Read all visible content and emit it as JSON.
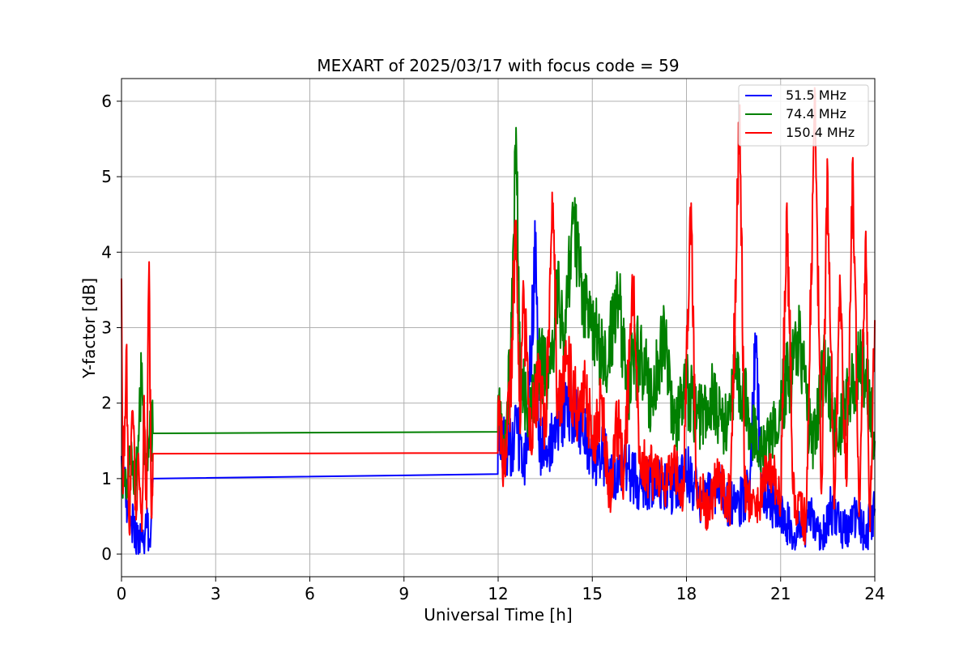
{
  "chart_data": {
    "type": "line",
    "title": "MEXART of 2025/03/17 with focus code = 59",
    "xlabel": "Universal Time [h]",
    "ylabel": "Y-factor [dB]",
    "xlim": [
      0,
      24
    ],
    "ylim": [
      -0.3,
      6.3
    ],
    "xticks": [
      0,
      3,
      6,
      9,
      12,
      15,
      18,
      21,
      24
    ],
    "xtick_labels": [
      "0",
      "3",
      "6",
      "9",
      "12",
      "15",
      "18",
      "21",
      "24"
    ],
    "yticks": [
      0,
      1,
      2,
      3,
      4,
      5,
      6
    ],
    "ytick_labels": [
      "0",
      "1",
      "2",
      "3",
      "4",
      "5",
      "6"
    ],
    "grid": true,
    "legend_position": "top-right",
    "series": [
      {
        "name": "51.5 MHz",
        "legend_label": " 51.5 MHz",
        "color": "#0000ff",
        "points": [
          [
            0.0,
            1.3
          ],
          [
            0.1,
            0.9
          ],
          [
            0.2,
            0.7
          ],
          [
            0.3,
            0.5
          ],
          [
            0.4,
            0.35
          ],
          [
            0.5,
            0.2
          ],
          [
            0.55,
            0.05
          ],
          [
            0.6,
            0.4
          ],
          [
            0.7,
            0.15
          ],
          [
            0.8,
            0.35
          ],
          [
            0.9,
            0.2
          ],
          [
            0.95,
            0.5
          ],
          [
            1.0,
            1.0
          ],
          [
            11.99,
            1.06
          ],
          [
            12.0,
            1.7
          ],
          [
            12.3,
            1.3
          ],
          [
            12.6,
            1.6
          ],
          [
            12.9,
            1.2
          ],
          [
            13.2,
            4.26
          ],
          [
            13.3,
            1.5
          ],
          [
            13.6,
            1.3
          ],
          [
            13.9,
            1.8
          ],
          [
            14.2,
            2.0
          ],
          [
            14.5,
            1.9
          ],
          [
            14.7,
            1.6
          ],
          [
            15.0,
            1.2
          ],
          [
            15.3,
            1.4
          ],
          [
            15.6,
            1.0
          ],
          [
            16.0,
            1.2
          ],
          [
            16.5,
            0.9
          ],
          [
            17.0,
            1.0
          ],
          [
            17.5,
            0.8
          ],
          [
            18.0,
            1.1
          ],
          [
            18.5,
            0.7
          ],
          [
            19.0,
            0.9
          ],
          [
            19.5,
            0.6
          ],
          [
            20.0,
            0.8
          ],
          [
            20.2,
            2.68
          ],
          [
            20.4,
            0.9
          ],
          [
            20.8,
            0.6
          ],
          [
            21.2,
            0.4
          ],
          [
            21.6,
            0.3
          ],
          [
            22.0,
            0.5
          ],
          [
            22.3,
            0.2
          ],
          [
            22.6,
            0.6
          ],
          [
            23.0,
            0.3
          ],
          [
            23.4,
            0.5
          ],
          [
            23.7,
            0.25
          ],
          [
            24.0,
            0.6
          ]
        ]
      },
      {
        "name": "74.4 MHz",
        "legend_label": " 74.4 MHz",
        "color": "#008000",
        "points": [
          [
            0.0,
            1.2
          ],
          [
            0.1,
            0.9
          ],
          [
            0.2,
            1.1
          ],
          [
            0.3,
            1.3
          ],
          [
            0.45,
            0.9
          ],
          [
            0.55,
            1.5
          ],
          [
            0.65,
            2.53
          ],
          [
            0.75,
            1.2
          ],
          [
            0.85,
            1.5
          ],
          [
            0.95,
            1.7
          ],
          [
            1.0,
            1.6
          ],
          [
            11.99,
            1.62
          ],
          [
            12.0,
            2.1
          ],
          [
            12.2,
            1.4
          ],
          [
            12.4,
            2.6
          ],
          [
            12.57,
            5.65
          ],
          [
            12.7,
            2.3
          ],
          [
            13.0,
            1.8
          ],
          [
            13.3,
            2.6
          ],
          [
            13.6,
            2.2
          ],
          [
            13.9,
            3.5
          ],
          [
            14.1,
            2.9
          ],
          [
            14.4,
            4.48
          ],
          [
            14.6,
            3.7
          ],
          [
            14.9,
            3.0
          ],
          [
            15.2,
            2.8
          ],
          [
            15.5,
            2.5
          ],
          [
            15.8,
            3.58
          ],
          [
            16.1,
            2.2
          ],
          [
            16.5,
            2.7
          ],
          [
            16.9,
            2.0
          ],
          [
            17.3,
            2.95
          ],
          [
            17.6,
            1.6
          ],
          [
            18.0,
            2.2
          ],
          [
            18.4,
            1.8
          ],
          [
            18.8,
            2.1
          ],
          [
            19.2,
            1.6
          ],
          [
            19.6,
            2.5
          ],
          [
            20.0,
            1.8
          ],
          [
            20.4,
            1.3
          ],
          [
            20.8,
            1.7
          ],
          [
            21.2,
            2.3
          ],
          [
            21.6,
            2.8
          ],
          [
            22.0,
            1.4
          ],
          [
            22.4,
            2.6
          ],
          [
            22.8,
            1.5
          ],
          [
            23.2,
            2.2
          ],
          [
            23.6,
            2.6
          ],
          [
            24.0,
            1.5
          ]
        ]
      },
      {
        "name": "150.4 MHz",
        "legend_label": "150.4 MHz",
        "color": "#ff0000",
        "points": [
          [
            0.0,
            3.65
          ],
          [
            0.05,
            0.8
          ],
          [
            0.15,
            2.7
          ],
          [
            0.25,
            0.28
          ],
          [
            0.35,
            1.9
          ],
          [
            0.45,
            0.7
          ],
          [
            0.55,
            1.2
          ],
          [
            0.65,
            0.3
          ],
          [
            0.72,
            2.1
          ],
          [
            0.8,
            0.6
          ],
          [
            0.88,
            3.87
          ],
          [
            0.95,
            0.5
          ],
          [
            1.0,
            1.33
          ],
          [
            11.99,
            1.34
          ],
          [
            12.0,
            2.0
          ],
          [
            12.2,
            1.1
          ],
          [
            12.4,
            2.3
          ],
          [
            12.57,
            4.42
          ],
          [
            12.7,
            1.6
          ],
          [
            12.8,
            3.62
          ],
          [
            13.0,
            1.5
          ],
          [
            13.3,
            2.3
          ],
          [
            13.5,
            1.6
          ],
          [
            13.75,
            4.65
          ],
          [
            13.9,
            1.8
          ],
          [
            14.2,
            2.6
          ],
          [
            14.5,
            1.9
          ],
          [
            14.8,
            2.2
          ],
          [
            15.0,
            1.4
          ],
          [
            15.3,
            2.1
          ],
          [
            15.55,
            0.77
          ],
          [
            15.8,
            1.8
          ],
          [
            16.0,
            1.0
          ],
          [
            16.3,
            3.5
          ],
          [
            16.5,
            1.2
          ],
          [
            16.9,
            1.1
          ],
          [
            17.3,
            0.9
          ],
          [
            17.6,
            1.3
          ],
          [
            17.9,
            0.8
          ],
          [
            18.15,
            4.65
          ],
          [
            18.3,
            0.9
          ],
          [
            18.7,
            0.6
          ],
          [
            19.0,
            1.0
          ],
          [
            19.4,
            0.7
          ],
          [
            19.7,
            5.95
          ],
          [
            19.85,
            0.9
          ],
          [
            20.2,
            0.5
          ],
          [
            20.6,
            1.2
          ],
          [
            21.0,
            0.7
          ],
          [
            21.2,
            4.65
          ],
          [
            21.4,
            0.8
          ],
          [
            21.8,
            0.4
          ],
          [
            22.1,
            6.1
          ],
          [
            22.3,
            0.8
          ],
          [
            22.5,
            5.05
          ],
          [
            22.7,
            0.6
          ],
          [
            22.9,
            3.5
          ],
          [
            23.1,
            0.9
          ],
          [
            23.3,
            5.25
          ],
          [
            23.5,
            0.5
          ],
          [
            23.7,
            4.15
          ],
          [
            23.85,
            0.3
          ],
          [
            24.0,
            3.1
          ]
        ]
      }
    ]
  }
}
